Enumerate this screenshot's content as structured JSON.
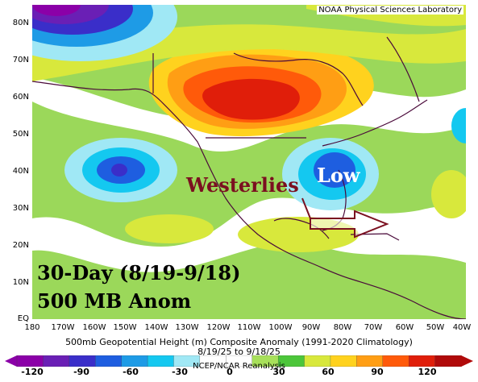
{
  "credit": "NOAA Physical Sciences Laboratory",
  "y_axis_labels": [
    "80N",
    "70N",
    "60N",
    "50N",
    "40N",
    "30N",
    "20N",
    "10N",
    "EQ"
  ],
  "x_axis_labels": [
    "180",
    "170W",
    "160W",
    "150W",
    "140W",
    "130W",
    "120W",
    "110W",
    "100W",
    "90W",
    "80W",
    "70W",
    "60W",
    "50W",
    "40W"
  ],
  "annotations": {
    "westerlies": "Westerlies",
    "low": "Low",
    "period": "30-Day (8/19-9/18)",
    "level": "500 MB Anom"
  },
  "caption": {
    "line1": "500mb Geopotential Height (m) Composite Anomaly (1991-2020 Climatology)",
    "line2": "8/19/25 to 9/18/25",
    "line3": "NCEP/NCAR Reanalysis"
  },
  "colorbar": {
    "labels": [
      "-120",
      "-90",
      "-60",
      "-30",
      "0",
      "30",
      "60",
      "90",
      "120"
    ],
    "colors": [
      "#8b00a8",
      "#6a1fb5",
      "#3a2ec9",
      "#1e5ee0",
      "#1e9be6",
      "#14c8f0",
      "#a0e8f5",
      "#ffffff",
      "#ffffff",
      "#a8e05a",
      "#4cc63a",
      "#d8e83c",
      "#ffd21e",
      "#ff9e14",
      "#ff5a0a",
      "#e01e0a",
      "#b00a0a"
    ]
  },
  "colors": {
    "westerlies_text": "#7b1020",
    "low_text": "#ffffff",
    "arrow": "#7b1020",
    "coastline": "#4a0a3a"
  }
}
